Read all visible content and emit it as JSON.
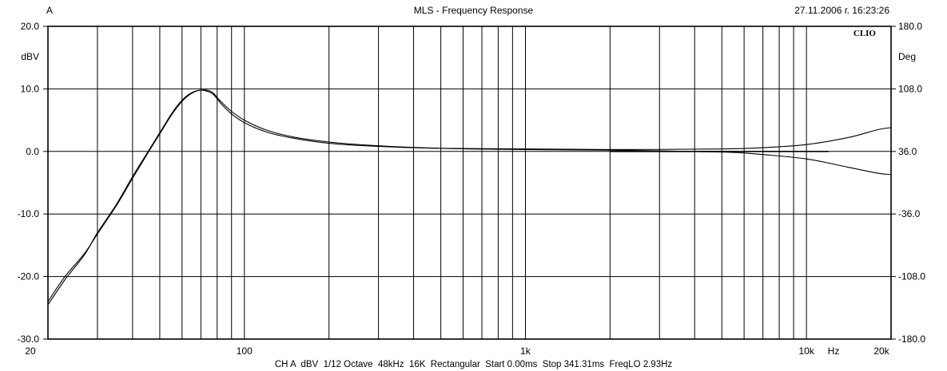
{
  "header": {
    "channel": "A",
    "title": "MLS - Frequency Response",
    "timestamp": "27.11.2006 г. 16:23:26"
  },
  "brand": "CLIO",
  "footer": "CH A  dBV  1/12 Octave  48kHz  16K  Rectangular  Start 0.00ms  Stop 341.31ms  FreqLO 2.93Hz",
  "chart_data": {
    "type": "line",
    "title": "MLS - Frequency Response",
    "xscale": "log",
    "xlim": [
      20,
      20000
    ],
    "ylim": [
      -30,
      20
    ],
    "y2lim": [
      -180,
      180
    ],
    "ylabel": "dBV",
    "y2label": "Deg",
    "xunit": "Hz",
    "grid": true,
    "xticks": [
      {
        "value": 20,
        "label": "20"
      },
      {
        "value": 100,
        "label": "100"
      },
      {
        "value": 1000,
        "label": "1k"
      },
      {
        "value": 10000,
        "label": "10k"
      },
      {
        "value": 20000,
        "label": "20k"
      }
    ],
    "yticks": [
      {
        "value": 20,
        "label": "20.0"
      },
      {
        "value": 10,
        "label": "10.0"
      },
      {
        "value": 0,
        "label": "0.0"
      },
      {
        "value": -10,
        "label": "-10.0"
      },
      {
        "value": -20,
        "label": "-20.0"
      },
      {
        "value": -30,
        "label": "-30.0"
      }
    ],
    "y2ticks": [
      {
        "value": 180,
        "label": "180.0"
      },
      {
        "value": 108,
        "label": "108.0"
      },
      {
        "value": 36,
        "label": "36.0"
      },
      {
        "value": -36,
        "label": "-36.0"
      },
      {
        "value": -108,
        "label": "-108.0"
      },
      {
        "value": -180,
        "label": "-180.0"
      }
    ],
    "series": [
      {
        "x": [
          20,
          23,
          27,
          30,
          35,
          40,
          45,
          50,
          55,
          60,
          65,
          70,
          75,
          78,
          82,
          90,
          100,
          120,
          150,
          200,
          300,
          500,
          1000,
          2000,
          5000,
          7000,
          10000,
          14000,
          18000,
          20000
        ],
        "y": [
          -24.5,
          -20.5,
          -16.5,
          -13.0,
          -8.5,
          -4.0,
          -0.3,
          3.0,
          6.0,
          8.2,
          9.4,
          9.8,
          9.5,
          9.0,
          7.8,
          6.0,
          4.6,
          3.1,
          2.1,
          1.3,
          0.8,
          0.5,
          0.4,
          0.3,
          0.4,
          0.6,
          1.1,
          2.2,
          3.5,
          3.8
        ]
      },
      {
        "x": [
          20,
          23,
          27,
          30,
          35,
          40,
          45,
          50,
          55,
          60,
          65,
          70,
          75,
          78,
          82,
          90,
          100,
          120,
          150,
          200,
          300,
          500,
          1000,
          2000,
          5000,
          7000,
          10000,
          14000,
          18000,
          20000
        ],
        "y": [
          -24.0,
          -20.0,
          -16.3,
          -13.2,
          -8.7,
          -4.3,
          -0.5,
          2.8,
          5.8,
          8.0,
          9.3,
          9.8,
          9.7,
          9.2,
          8.1,
          6.4,
          5.0,
          3.4,
          2.3,
          1.5,
          0.9,
          0.5,
          0.3,
          0.2,
          -0.1,
          -0.5,
          -1.2,
          -2.5,
          -3.5,
          -3.7
        ]
      },
      {
        "x": [
          2000,
          5000,
          8000,
          12000
        ],
        "y": [
          0.0,
          0.0,
          0.0,
          0.0
        ]
      }
    ]
  }
}
